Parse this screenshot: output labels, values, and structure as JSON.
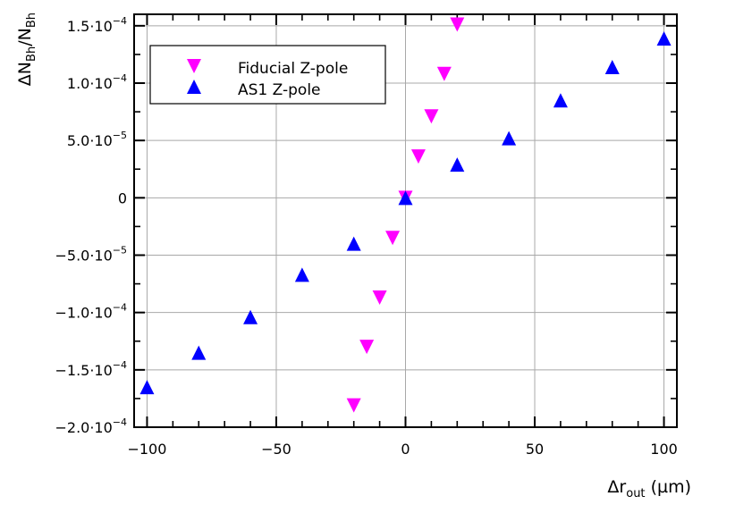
{
  "chart_data": {
    "type": "scatter",
    "xlabel": "Δr",
    "xlabel_sub": "out",
    "xlabel_unit": " (µm)",
    "ylabel": "ΔN",
    "ylabel_sub1": "Bh",
    "ylabel_mid": "/N",
    "ylabel_sub2": "Bh",
    "xlim": [
      -105,
      105
    ],
    "ylim": [
      -0.0002,
      0.00016
    ],
    "grid": true,
    "legend_position": "top-left",
    "x_ticks": [
      -100,
      -50,
      0,
      50,
      100
    ],
    "x_tick_labels": [
      "−100",
      "−50",
      "0",
      "50",
      "100"
    ],
    "y_ticks": [
      -0.0002,
      -0.00015,
      -0.0001,
      -5e-05,
      0,
      5e-05,
      0.0001,
      0.00015
    ],
    "y_tick_labels": [
      "−2.0·10",
      "−1.5·10",
      "−1.0·10",
      "−5.0·10",
      "0",
      "5.0·10",
      "1.0·10",
      "1.5·10"
    ],
    "y_tick_exponents": [
      "−4",
      "−4",
      "−4",
      "−5",
      "",
      "−5",
      "−4",
      "−4"
    ],
    "series": [
      {
        "name": "Fiducial Z-pole",
        "color": "#ff00ff",
        "marker": "triangle-down",
        "x": [
          -20,
          -15,
          -10,
          -5,
          0,
          5,
          10,
          15,
          20
        ],
        "y": [
          -0.000181,
          -0.00013,
          -8.7e-05,
          -3.5e-05,
          0.0,
          3.6e-05,
          7.1e-05,
          0.000108,
          0.000151
        ]
      },
      {
        "name": "AS1 Z-pole",
        "color": "#0000ff",
        "marker": "triangle-up",
        "x": [
          -100,
          -80,
          -60,
          -40,
          -20,
          0,
          20,
          40,
          60,
          80,
          100
        ],
        "y": [
          -0.000165,
          -0.000135,
          -0.000104,
          -6.7e-05,
          -4e-05,
          0.0,
          2.9e-05,
          5.2e-05,
          8.5e-05,
          0.000114,
          0.000139
        ]
      }
    ]
  }
}
